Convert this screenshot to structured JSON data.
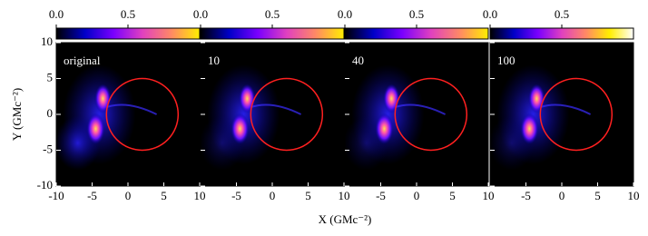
{
  "xlabel": "X (GMc⁻²)",
  "ylabel": "Y (GMc⁻²)",
  "chart_data": [
    {
      "type": "image",
      "label": "original",
      "xlim": [
        -10,
        10
      ],
      "ylim": [
        -10,
        10
      ],
      "xticks": [
        -10,
        -5,
        0,
        5,
        10
      ],
      "yticks": [
        -10,
        -5,
        0,
        5,
        10
      ],
      "show_yticklabels": true,
      "clim": [
        0,
        1
      ],
      "cticks": [
        {
          "value": 0,
          "label": "0.0"
        },
        0.5
      ],
      "colormap": [
        "#000000",
        "#0000c8",
        "#7a00ff",
        "#e040c0",
        "#ff8866",
        "#ffee00"
      ],
      "circle": {
        "center": [
          2,
          0
        ],
        "radius": 5,
        "color": "#ff2020"
      }
    },
    {
      "type": "image",
      "label": "10",
      "xlim": [
        -10,
        10
      ],
      "ylim": [
        -10,
        10
      ],
      "xticks": [
        -5,
        0,
        5,
        10
      ],
      "yticks": [
        -10,
        -5,
        0,
        5,
        10
      ],
      "show_yticklabels": false,
      "clim": [
        0,
        1
      ],
      "cticks": [
        {
          "value": 0,
          "label": "0.0"
        },
        0.5
      ],
      "colormap": [
        "#000000",
        "#0000c8",
        "#7a00ff",
        "#e040c0",
        "#ff8866",
        "#ffee00"
      ],
      "circle": {
        "center": [
          2,
          0
        ],
        "radius": 5,
        "color": "#ff2020"
      }
    },
    {
      "type": "image",
      "label": "40",
      "xlim": [
        -10,
        10
      ],
      "ylim": [
        -10,
        10
      ],
      "xticks": [
        -5,
        0,
        5,
        10
      ],
      "yticks": [
        -10,
        -5,
        0,
        5,
        10
      ],
      "show_yticklabels": false,
      "clim": [
        0,
        1
      ],
      "cticks": [
        {
          "value": 0,
          "label": "0.0"
        },
        0.5
      ],
      "colormap": [
        "#000000",
        "#0000c8",
        "#7a00ff",
        "#e040c0",
        "#ff8866",
        "#ffee00"
      ],
      "circle": {
        "center": [
          2,
          0
        ],
        "radius": 5,
        "color": "#ff2020"
      }
    },
    {
      "type": "image",
      "label": "100",
      "xlim": [
        -10,
        10
      ],
      "ylim": [
        -10,
        10
      ],
      "xticks": [
        -5,
        0,
        5,
        10
      ],
      "yticks": [
        -10,
        -5,
        0,
        5,
        10
      ],
      "show_yticklabels": false,
      "clim": [
        0,
        1
      ],
      "cticks": [
        {
          "value": 0,
          "label": "0.0"
        },
        0.5
      ],
      "colormap": [
        "#000000",
        "#0000c8",
        "#7a00ff",
        "#e040c0",
        "#ff8866",
        "#ffee00",
        "#ffffff"
      ],
      "circle": {
        "center": [
          2,
          0
        ],
        "radius": 5,
        "color": "#ff2020"
      }
    }
  ]
}
